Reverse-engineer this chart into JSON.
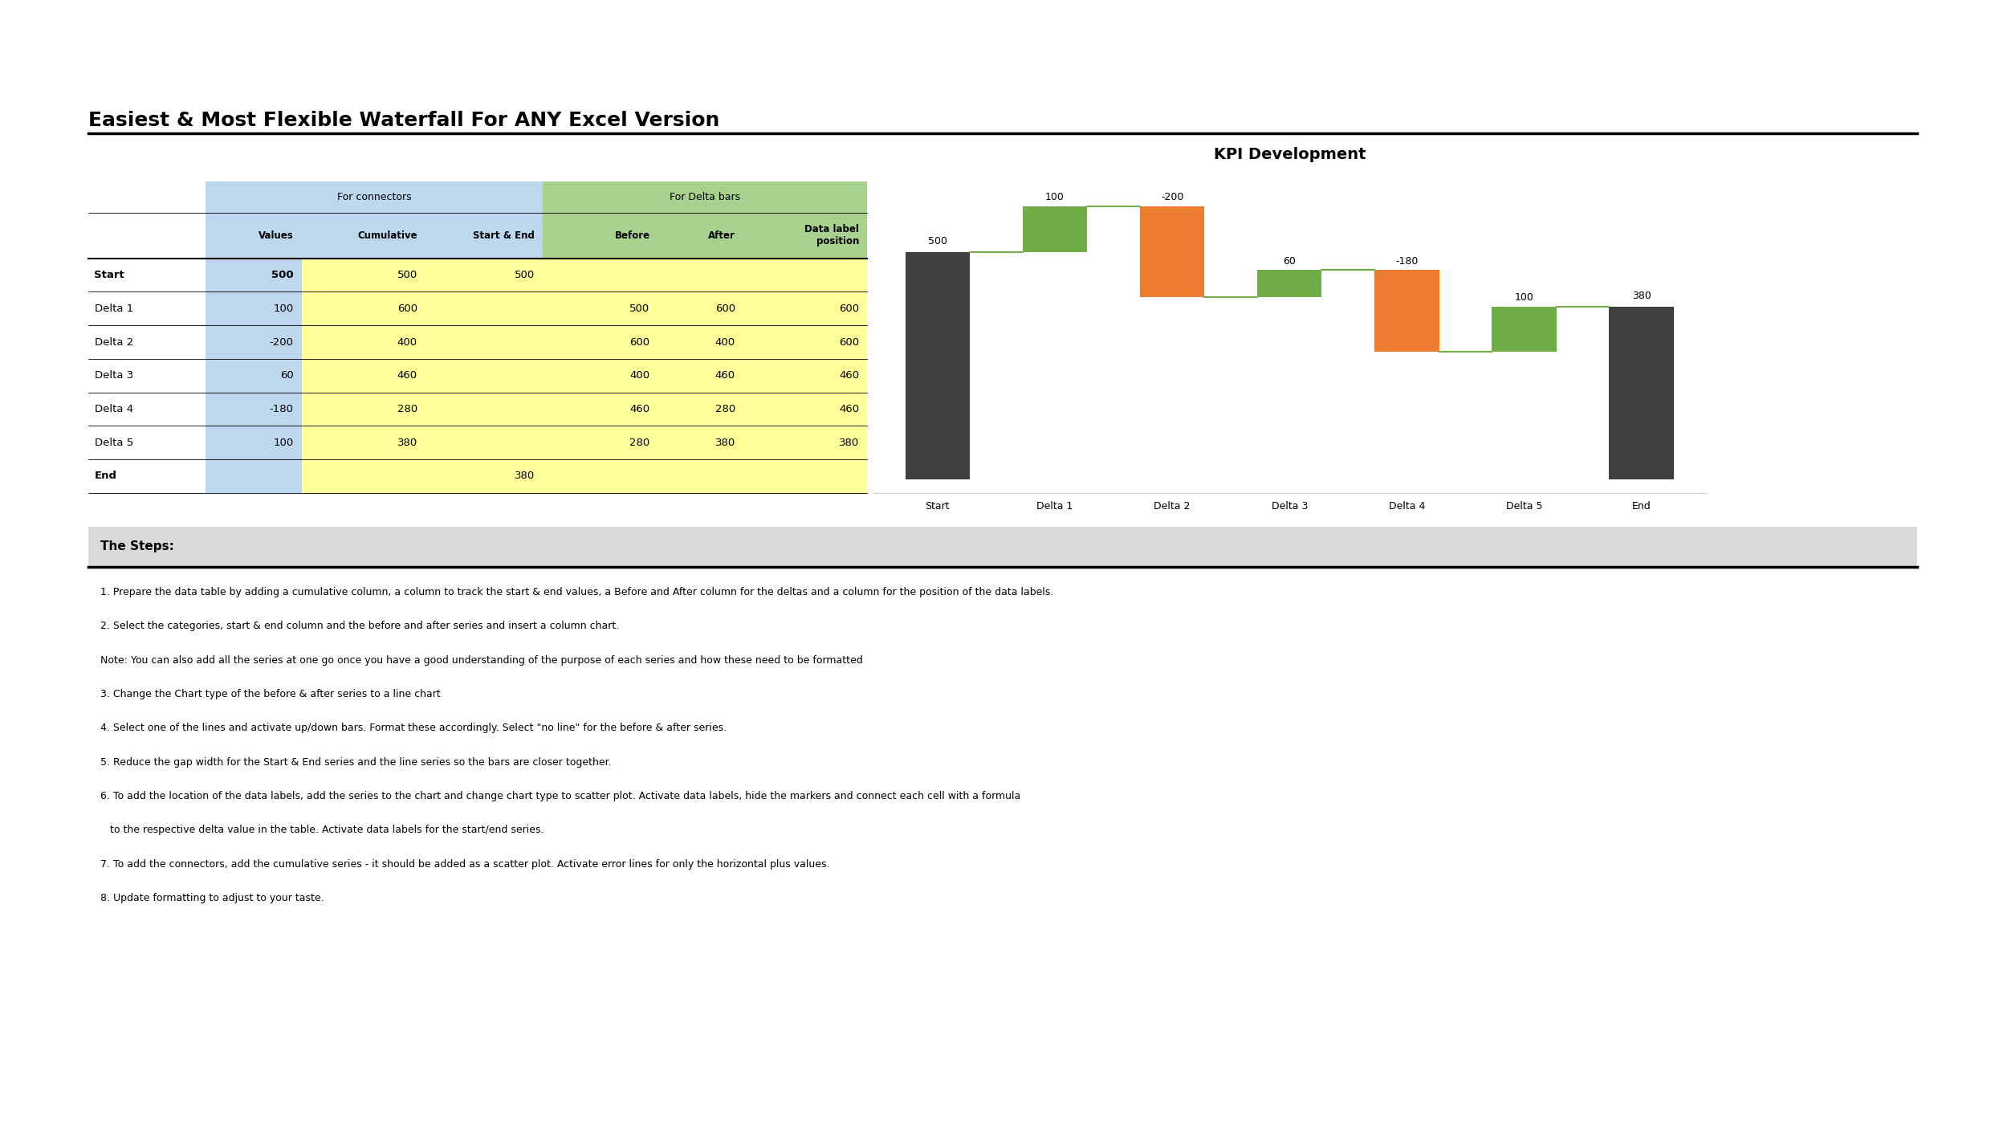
{
  "title": "Easiest & Most Flexible Waterfall For ANY Excel Version",
  "chart_title": "KPI Development",
  "bg_color": "#ffffff",
  "categories": [
    "Start",
    "Delta 1",
    "Delta 2",
    "Delta 3",
    "Delta 4",
    "Delta 5",
    "End"
  ],
  "values": [
    500,
    100,
    -200,
    60,
    -180,
    100,
    380
  ],
  "cumulative": [
    500,
    600,
    400,
    460,
    280,
    380,
    380
  ],
  "table_rows": [
    [
      "Start",
      "500",
      "500",
      "500",
      "",
      "",
      ""
    ],
    [
      "Delta 1",
      "100",
      "600",
      "",
      "500",
      "600",
      "600"
    ],
    [
      "Delta 2",
      "-200",
      "400",
      "",
      "600",
      "400",
      "600"
    ],
    [
      "Delta 3",
      "60",
      "460",
      "",
      "400",
      "460",
      "460"
    ],
    [
      "Delta 4",
      "-180",
      "280",
      "",
      "460",
      "280",
      "460"
    ],
    [
      "Delta 5",
      "100",
      "380",
      "",
      "280",
      "380",
      "380"
    ],
    [
      "End",
      "",
      "",
      "380",
      "",
      "",
      ""
    ]
  ],
  "col_headers": [
    "",
    "Values",
    "Cumulative",
    "Start & End",
    "Before",
    "After",
    "Data label\nposition"
  ],
  "bar_colors": {
    "start": "#404040",
    "end": "#404040",
    "positive": "#70ad47",
    "negative": "#ed7d31"
  },
  "connector_color": "#70ad47",
  "cell_colors": {
    "group_connector": "#bdd7ee",
    "group_delta": "#a9d18e",
    "cumulative_bg": "#ffff99",
    "start_end_bg": "#ffff99",
    "before_bg": "#ffff99",
    "after_bg": "#ffff99",
    "label_pos_bg": "#ffff99"
  },
  "steps_header": "The Steps:",
  "steps_text": [
    "1. Prepare the data table by adding a cumulative column, a column to track the start & end values, a Before and After column for the deltas and a column for the position of the data labels.",
    "2. Select the categories, start & end column and the before and after series and insert a column chart.",
    "Note: You can also add all the series at one go once you have a good understanding of the purpose of each series and how these need to be formatted",
    "3. Change the Chart type of the before & after series to a line chart",
    "4. Select one of the lines and activate up/down bars. Format these accordingly. Select \"no line\" for the before & after series.",
    "5. Reduce the gap width for the Start & End series and the line series so the bars are closer together.",
    "6. To add the location of the data labels, add the series to the chart and change chart type to scatter plot. Activate data labels, hide the markers and connect each cell with a formula",
    "   to the respective delta value in the table. Activate data labels for the start/end series.",
    "7. To add the connectors, add the cumulative series - it should be added as a scatter plot. Activate error lines for only the horizontal plus values.",
    "8. Update formatting to adjust to your taste."
  ],
  "label_values": [
    500,
    100,
    -200,
    60,
    -180,
    100,
    380
  ],
  "label_positions_y": [
    500,
    600,
    600,
    460,
    460,
    380,
    380
  ]
}
